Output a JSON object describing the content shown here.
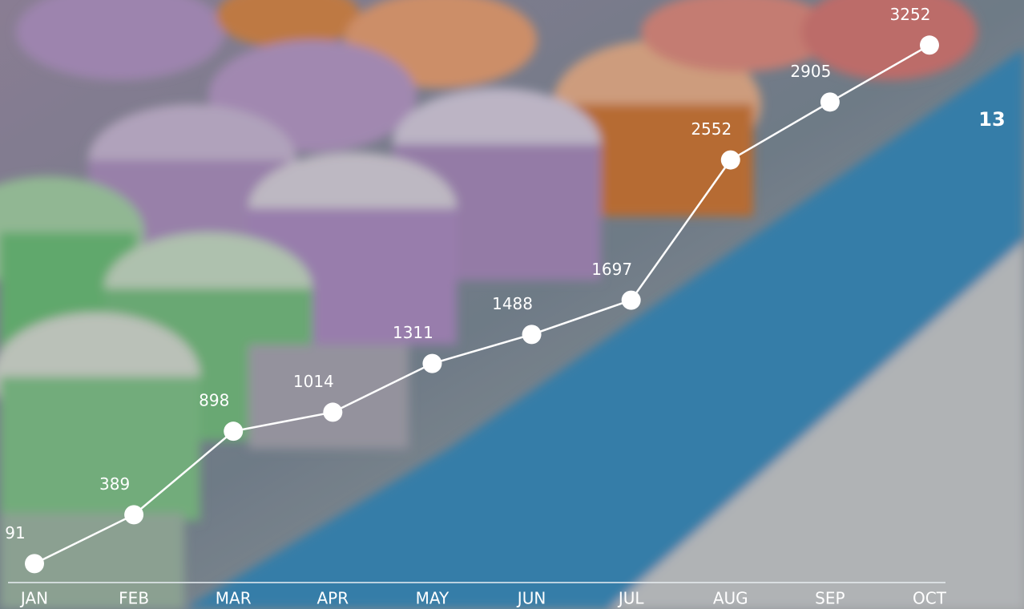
{
  "chart_data": {
    "type": "line",
    "categories": [
      "JAN",
      "FEB",
      "MAR",
      "APR",
      "MAY",
      "JUN",
      "JUL",
      "AUG",
      "SEP",
      "OCT"
    ],
    "values": [
      91,
      389,
      898,
      1014,
      1311,
      1488,
      1697,
      2552,
      2905,
      3252
    ],
    "color": "#ffffff",
    "ylim": [
      0,
      3400
    ],
    "annotation": "13"
  }
}
